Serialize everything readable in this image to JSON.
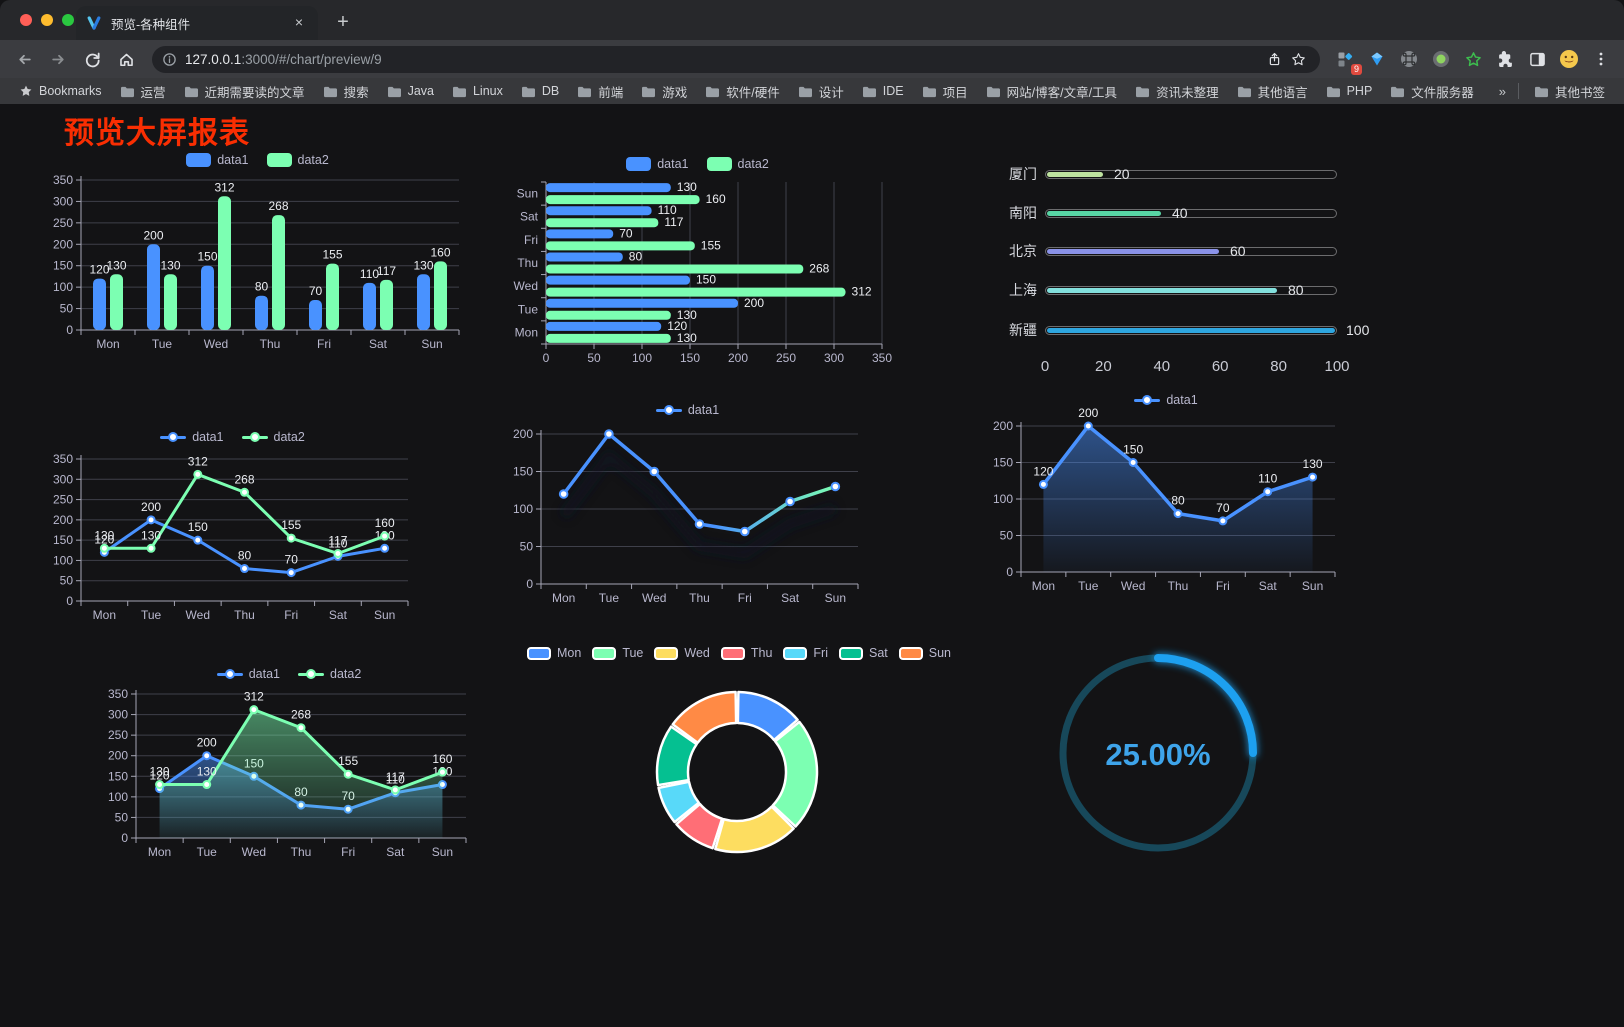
{
  "browser": {
    "tab_title": "预览-各种组件",
    "url_host": "127.0.0.1",
    "url_rest": ":3000/#/chart/preview/9",
    "extension_badge": "9",
    "bookmarks_label": "Bookmarks",
    "bookmarks": [
      "运营",
      "近期需要读的文章",
      "搜索",
      "Java",
      "Linux",
      "DB",
      "前端",
      "游戏",
      "软件/硬件",
      "设计",
      "IDE",
      "项目",
      "网站/博客/文章/工具",
      "资讯未整理",
      "其他语言",
      "PHP",
      "文件服务器"
    ],
    "bookmarks_overflow": "»",
    "other_bookmarks": "其他书签"
  },
  "page": {
    "title": "预览大屏报表",
    "title_color": "#f92e02"
  },
  "colors": {
    "blue": "#4992ff",
    "green": "#7cffb2"
  },
  "charts": {
    "grouped_bar": {
      "type": "bar",
      "categories": [
        "Mon",
        "Tue",
        "Wed",
        "Thu",
        "Fri",
        "Sat",
        "Sun"
      ],
      "series": [
        {
          "name": "data1",
          "color": "#4992ff",
          "values": [
            120,
            200,
            150,
            80,
            70,
            110,
            130
          ]
        },
        {
          "name": "data2",
          "color": "#7cffb2",
          "values": [
            130,
            130,
            312,
            268,
            155,
            117,
            160
          ]
        }
      ],
      "ymax": 350,
      "yticks": [
        0,
        50,
        100,
        150,
        200,
        250,
        300,
        350
      ]
    },
    "hbar": {
      "type": "bar-horizontal",
      "categories": [
        "Mon",
        "Tue",
        "Wed",
        "Thu",
        "Fri",
        "Sat",
        "Sun"
      ],
      "series": [
        {
          "name": "data1",
          "color": "#4992ff",
          "values": [
            120,
            200,
            150,
            80,
            70,
            110,
            130
          ]
        },
        {
          "name": "data2",
          "color": "#7cffb2",
          "values": [
            130,
            130,
            312,
            268,
            155,
            117,
            160
          ]
        }
      ],
      "xmax": 350,
      "xticks": [
        0,
        50,
        100,
        150,
        200,
        250,
        300,
        350
      ]
    },
    "progress": {
      "type": "progress-bars",
      "items": [
        {
          "label": "厦门",
          "value": 20,
          "color": "#bfe3a0"
        },
        {
          "label": "南阳",
          "value": 40,
          "color": "#58d5a5"
        },
        {
          "label": "北京",
          "value": 60,
          "color": "#8a92e8"
        },
        {
          "label": "上海",
          "value": 80,
          "color": "#83e0dd"
        },
        {
          "label": "新疆",
          "value": 100,
          "color": "#2ea6e0"
        }
      ],
      "max": 100,
      "axis_ticks": [
        0,
        20,
        40,
        60,
        80,
        100
      ]
    },
    "line_two": {
      "type": "line",
      "categories": [
        "Mon",
        "Tue",
        "Wed",
        "Thu",
        "Fri",
        "Sat",
        "Sun"
      ],
      "series": [
        {
          "name": "data1",
          "color": "#4992ff",
          "values": [
            120,
            200,
            150,
            80,
            70,
            110,
            130
          ]
        },
        {
          "name": "data2",
          "color": "#7cffb2",
          "values": [
            130,
            130,
            312,
            268,
            155,
            117,
            160
          ]
        }
      ],
      "ymax": 350,
      "yticks": [
        0,
        50,
        100,
        150,
        200,
        250,
        300,
        350
      ]
    },
    "gradient_line": {
      "type": "line",
      "legend": "data1",
      "categories": [
        "Mon",
        "Tue",
        "Wed",
        "Thu",
        "Fri",
        "Sat",
        "Sun"
      ],
      "values": [
        120,
        200,
        150,
        80,
        70,
        110,
        130
      ],
      "color_start": "#4992ff",
      "color_end": "#7cffb2",
      "ymax": 200,
      "yticks": [
        0,
        50,
        100,
        150,
        200
      ]
    },
    "area_line": {
      "type": "area",
      "legend": "data1",
      "categories": [
        "Mon",
        "Tue",
        "Wed",
        "Thu",
        "Fri",
        "Sat",
        "Sun"
      ],
      "values": [
        120,
        200,
        150,
        80,
        70,
        110,
        130
      ],
      "color": "#4992ff",
      "ymax": 200,
      "yticks": [
        0,
        50,
        100,
        150,
        200
      ]
    },
    "area_two": {
      "type": "area",
      "categories": [
        "Mon",
        "Tue",
        "Wed",
        "Thu",
        "Fri",
        "Sat",
        "Sun"
      ],
      "series": [
        {
          "name": "data1",
          "color": "#4992ff",
          "values": [
            120,
            200,
            150,
            80,
            70,
            110,
            130
          ]
        },
        {
          "name": "data2",
          "color": "#7cffb2",
          "values": [
            130,
            130,
            312,
            268,
            155,
            117,
            160
          ]
        }
      ],
      "ymax": 350,
      "yticks": [
        0,
        50,
        100,
        150,
        200,
        250,
        300,
        350
      ]
    },
    "donut": {
      "type": "pie",
      "labels": [
        "Mon",
        "Tue",
        "Wed",
        "Thu",
        "Fri",
        "Sat",
        "Sun"
      ],
      "values": [
        120,
        200,
        150,
        80,
        70,
        110,
        130
      ],
      "colors": [
        "#4992ff",
        "#7cffb2",
        "#fddd60",
        "#ff6e76",
        "#58d9f9",
        "#05c091",
        "#ff8a45"
      ]
    },
    "gauge": {
      "type": "gauge",
      "value": 25,
      "text": "25.00%",
      "color": "#1da0f0",
      "track": "#17485a",
      "text_color": "#3ea4ea"
    }
  }
}
